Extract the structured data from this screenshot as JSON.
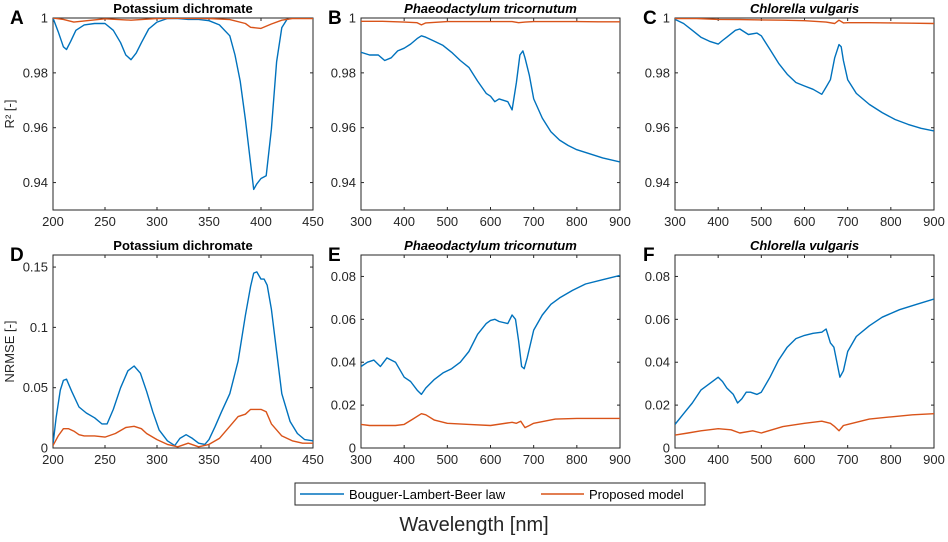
{
  "figure": {
    "xlabel": "Wavelength [nm]",
    "legend": {
      "items": [
        "Bouguer-Lambert-Beer law",
        "Proposed model"
      ],
      "placement": "bottom-center"
    },
    "colors": {
      "blb": "#0072BD",
      "proposed": "#D95319",
      "axis": "#262626"
    }
  },
  "chart_data": [
    {
      "id": "A",
      "type": "line",
      "title": "Potassium dichromate",
      "italic": false,
      "xlabel": "",
      "ylabel": "R² [-]",
      "xlim": [
        200,
        450
      ],
      "ylim": [
        0.93,
        1.0
      ],
      "xticks": [
        200,
        250,
        300,
        350,
        400,
        450
      ],
      "yticks": [
        0.94,
        0.96,
        0.98,
        1.0
      ],
      "ytick_labels": [
        "0.94",
        "0.96",
        "0.98",
        "1"
      ],
      "series": [
        {
          "name": "Bouguer-Lambert-Beer law",
          "x": [
            200,
            205,
            210,
            213,
            217,
            222,
            230,
            240,
            250,
            258,
            265,
            270,
            275,
            280,
            285,
            292,
            300,
            310,
            320,
            330,
            340,
            350,
            360,
            370,
            375,
            380,
            385,
            390,
            393,
            396,
            400,
            405,
            410,
            415,
            420,
            425,
            430,
            440,
            450
          ],
          "y": [
            1.0,
            0.995,
            0.9895,
            0.9885,
            0.9915,
            0.9955,
            0.9975,
            0.998,
            0.998,
            0.9955,
            0.991,
            0.9865,
            0.9848,
            0.9872,
            0.991,
            0.996,
            0.9985,
            0.9998,
            0.9998,
            0.9995,
            0.9995,
            0.999,
            0.9975,
            0.9935,
            0.9865,
            0.977,
            0.963,
            0.947,
            0.9375,
            0.9395,
            0.9415,
            0.9425,
            0.9595,
            0.984,
            0.9965,
            0.9995,
            1.0,
            1.0,
            1.0
          ]
        },
        {
          "name": "Proposed model",
          "x": [
            200,
            210,
            220,
            250,
            275,
            300,
            320,
            350,
            370,
            385,
            390,
            400,
            410,
            420,
            430,
            450
          ],
          "y": [
            1.0,
            0.9995,
            0.9985,
            0.9997,
            0.9992,
            0.9998,
            0.9999,
            0.9998,
            0.9994,
            0.998,
            0.9966,
            0.9962,
            0.9978,
            0.9992,
            0.9998,
            0.9998
          ]
        }
      ]
    },
    {
      "id": "B",
      "type": "line",
      "title": "Phaeodactylum tricornutum",
      "italic": true,
      "xlabel": "",
      "ylabel": "",
      "xlim": [
        300,
        900
      ],
      "ylim": [
        0.93,
        1.0
      ],
      "xticks": [
        300,
        400,
        500,
        600,
        700,
        800,
        900
      ],
      "yticks": [
        0.94,
        0.96,
        0.98,
        1.0
      ],
      "ytick_labels": [
        "0.94",
        "0.96",
        "0.98",
        "1"
      ],
      "series": [
        {
          "name": "Bouguer-Lambert-Beer law",
          "x": [
            300,
            320,
            340,
            355,
            370,
            385,
            400,
            415,
            430,
            440,
            450,
            470,
            490,
            510,
            530,
            550,
            570,
            590,
            600,
            610,
            620,
            640,
            650,
            660,
            668,
            675,
            680,
            690,
            700,
            720,
            740,
            760,
            780,
            800,
            830,
            860,
            900
          ],
          "y": [
            0.9875,
            0.9865,
            0.9865,
            0.9845,
            0.9855,
            0.988,
            0.989,
            0.9905,
            0.9925,
            0.9935,
            0.993,
            0.9915,
            0.99,
            0.9875,
            0.9845,
            0.982,
            0.977,
            0.9725,
            0.9715,
            0.9695,
            0.9705,
            0.9695,
            0.9665,
            0.9765,
            0.9865,
            0.988,
            0.9855,
            0.979,
            0.9705,
            0.9635,
            0.9585,
            0.9555,
            0.9535,
            0.952,
            0.9505,
            0.949,
            0.9475
          ]
        },
        {
          "name": "Proposed model",
          "x": [
            300,
            350,
            400,
            430,
            440,
            450,
            500,
            550,
            600,
            650,
            665,
            680,
            700,
            750,
            800,
            850,
            900
          ],
          "y": [
            0.9988,
            0.9988,
            0.9985,
            0.9983,
            0.9975,
            0.9982,
            0.9987,
            0.9987,
            0.9987,
            0.9987,
            0.9983,
            0.9985,
            0.9987,
            0.9987,
            0.9987,
            0.9986,
            0.9986
          ]
        }
      ]
    },
    {
      "id": "C",
      "type": "line",
      "title": "Chlorella vulgaris",
      "italic": true,
      "xlabel": "",
      "ylabel": "",
      "xlim": [
        300,
        900
      ],
      "ylim": [
        0.93,
        1.0
      ],
      "xticks": [
        300,
        400,
        500,
        600,
        700,
        800,
        900
      ],
      "yticks": [
        0.94,
        0.96,
        0.98,
        1.0
      ],
      "ytick_labels": [
        "0.94",
        "0.96",
        "0.98",
        "1"
      ],
      "series": [
        {
          "name": "Bouguer-Lambert-Beer law",
          "x": [
            300,
            320,
            340,
            360,
            380,
            400,
            410,
            420,
            440,
            450,
            470,
            490,
            500,
            520,
            540,
            560,
            580,
            600,
            620,
            640,
            650,
            660,
            670,
            680,
            685,
            690,
            700,
            720,
            750,
            780,
            810,
            840,
            870,
            900
          ],
          "y": [
            0.9995,
            0.998,
            0.9955,
            0.993,
            0.9915,
            0.9905,
            0.9918,
            0.993,
            0.9955,
            0.996,
            0.994,
            0.9945,
            0.9935,
            0.9885,
            0.9835,
            0.9795,
            0.9765,
            0.9752,
            0.974,
            0.9722,
            0.9748,
            0.9775,
            0.9855,
            0.9903,
            0.9895,
            0.9845,
            0.9775,
            0.9725,
            0.9685,
            0.9655,
            0.963,
            0.9612,
            0.9598,
            0.9588
          ]
        },
        {
          "name": "Proposed model",
          "x": [
            300,
            350,
            400,
            450,
            500,
            550,
            600,
            650,
            670,
            680,
            690,
            700,
            750,
            800,
            850,
            900
          ],
          "y": [
            0.9998,
            0.9998,
            0.9995,
            0.9994,
            0.9993,
            0.9992,
            0.999,
            0.9985,
            0.998,
            0.9992,
            0.9982,
            0.9983,
            0.9983,
            0.9982,
            0.9981,
            0.998
          ]
        }
      ]
    },
    {
      "id": "D",
      "type": "line",
      "title": "Potassium dichromate",
      "italic": false,
      "xlabel": "",
      "ylabel": "NRMSE [-]",
      "xlim": [
        200,
        450
      ],
      "ylim": [
        0,
        0.16
      ],
      "xticks": [
        200,
        250,
        300,
        350,
        400,
        450
      ],
      "yticks": [
        0,
        0.05,
        0.1,
        0.15
      ],
      "ytick_labels": [
        "0",
        "0.05",
        "0.1",
        "0.15"
      ],
      "series": [
        {
          "name": "Bouguer-Lambert-Beer law",
          "x": [
            200,
            203,
            207,
            210,
            213,
            218,
            225,
            232,
            240,
            247,
            252,
            258,
            265,
            272,
            278,
            284,
            290,
            296,
            302,
            310,
            317,
            322,
            328,
            334,
            340,
            346,
            350,
            356,
            362,
            370,
            378,
            385,
            390,
            393,
            396,
            400,
            403,
            406,
            410,
            415,
            420,
            428,
            435,
            442,
            450
          ],
          "y": [
            0.003,
            0.025,
            0.048,
            0.056,
            0.057,
            0.047,
            0.034,
            0.029,
            0.025,
            0.02,
            0.02,
            0.032,
            0.05,
            0.064,
            0.068,
            0.062,
            0.047,
            0.03,
            0.015,
            0.006,
            0.002,
            0.008,
            0.011,
            0.008,
            0.004,
            0.003,
            0.007,
            0.018,
            0.03,
            0.045,
            0.072,
            0.11,
            0.134,
            0.145,
            0.146,
            0.14,
            0.14,
            0.135,
            0.115,
            0.08,
            0.045,
            0.022,
            0.012,
            0.007,
            0.006
          ]
        },
        {
          "name": "Proposed model",
          "x": [
            200,
            205,
            210,
            215,
            220,
            225,
            230,
            240,
            250,
            260,
            270,
            278,
            285,
            290,
            300,
            310,
            320,
            330,
            340,
            350,
            360,
            370,
            378,
            385,
            390,
            395,
            400,
            405,
            410,
            420,
            430,
            440,
            450
          ],
          "y": [
            0.002,
            0.01,
            0.016,
            0.016,
            0.014,
            0.011,
            0.01,
            0.01,
            0.009,
            0.012,
            0.017,
            0.018,
            0.016,
            0.012,
            0.007,
            0.003,
            0.001,
            0.004,
            0.001,
            0.003,
            0.008,
            0.018,
            0.026,
            0.028,
            0.032,
            0.032,
            0.032,
            0.03,
            0.02,
            0.01,
            0.006,
            0.004,
            0.004
          ]
        }
      ]
    },
    {
      "id": "E",
      "type": "line",
      "title": "Phaeodactylum tricornutum",
      "italic": true,
      "xlabel": "",
      "ylabel": "",
      "xlim": [
        300,
        900
      ],
      "ylim": [
        0,
        0.09
      ],
      "xticks": [
        300,
        400,
        500,
        600,
        700,
        800,
        900
      ],
      "yticks": [
        0,
        0.02,
        0.04,
        0.06,
        0.08
      ],
      "ytick_labels": [
        "0",
        "0.02",
        "0.04",
        "0.06",
        "0.08"
      ],
      "series": [
        {
          "name": "Bouguer-Lambert-Beer law",
          "x": [
            300,
            315,
            330,
            345,
            360,
            380,
            400,
            415,
            430,
            440,
            450,
            470,
            490,
            510,
            530,
            550,
            570,
            590,
            600,
            610,
            620,
            640,
            650,
            658,
            665,
            672,
            678,
            685,
            700,
            720,
            740,
            760,
            790,
            820,
            860,
            900
          ],
          "y": [
            0.038,
            0.04,
            0.041,
            0.038,
            0.042,
            0.04,
            0.033,
            0.031,
            0.027,
            0.025,
            0.028,
            0.032,
            0.035,
            0.037,
            0.04,
            0.045,
            0.053,
            0.058,
            0.0595,
            0.06,
            0.059,
            0.058,
            0.062,
            0.06,
            0.05,
            0.038,
            0.037,
            0.042,
            0.055,
            0.062,
            0.067,
            0.07,
            0.0735,
            0.0765,
            0.0785,
            0.0805
          ]
        },
        {
          "name": "Proposed model",
          "x": [
            300,
            320,
            350,
            380,
            400,
            420,
            440,
            450,
            470,
            500,
            550,
            600,
            650,
            660,
            670,
            680,
            690,
            700,
            750,
            800,
            850,
            900
          ],
          "y": [
            0.011,
            0.0105,
            0.0105,
            0.0105,
            0.011,
            0.0135,
            0.016,
            0.0155,
            0.013,
            0.0115,
            0.011,
            0.0105,
            0.012,
            0.0115,
            0.0125,
            0.0095,
            0.0105,
            0.0115,
            0.0135,
            0.0138,
            0.0138,
            0.0138
          ]
        }
      ]
    },
    {
      "id": "F",
      "type": "line",
      "title": "Chlorella vulgaris",
      "italic": true,
      "xlabel": "",
      "ylabel": "",
      "xlim": [
        300,
        900
      ],
      "ylim": [
        0,
        0.09
      ],
      "xticks": [
        300,
        400,
        500,
        600,
        700,
        800,
        900
      ],
      "yticks": [
        0,
        0.02,
        0.04,
        0.06,
        0.08
      ],
      "ytick_labels": [
        "0",
        "0.02",
        "0.04",
        "0.06",
        "0.08"
      ],
      "series": [
        {
          "name": "Bouguer-Lambert-Beer law",
          "x": [
            300,
            320,
            340,
            360,
            380,
            400,
            410,
            420,
            435,
            445,
            455,
            465,
            475,
            490,
            500,
            520,
            540,
            560,
            580,
            600,
            620,
            640,
            650,
            660,
            668,
            675,
            682,
            690,
            700,
            720,
            750,
            780,
            820,
            860,
            900
          ],
          "y": [
            0.011,
            0.016,
            0.021,
            0.027,
            0.03,
            0.033,
            0.031,
            0.028,
            0.025,
            0.021,
            0.023,
            0.026,
            0.026,
            0.025,
            0.026,
            0.033,
            0.041,
            0.047,
            0.051,
            0.0525,
            0.0535,
            0.054,
            0.0555,
            0.049,
            0.047,
            0.04,
            0.033,
            0.036,
            0.045,
            0.052,
            0.057,
            0.061,
            0.0645,
            0.067,
            0.0695
          ]
        },
        {
          "name": "Proposed model",
          "x": [
            300,
            330,
            360,
            400,
            430,
            450,
            480,
            500,
            550,
            600,
            640,
            660,
            670,
            680,
            690,
            700,
            750,
            800,
            850,
            900
          ],
          "y": [
            0.006,
            0.007,
            0.008,
            0.009,
            0.0085,
            0.007,
            0.008,
            0.007,
            0.01,
            0.0115,
            0.0125,
            0.0115,
            0.01,
            0.008,
            0.0105,
            0.011,
            0.0135,
            0.0145,
            0.0155,
            0.016
          ]
        }
      ]
    }
  ]
}
